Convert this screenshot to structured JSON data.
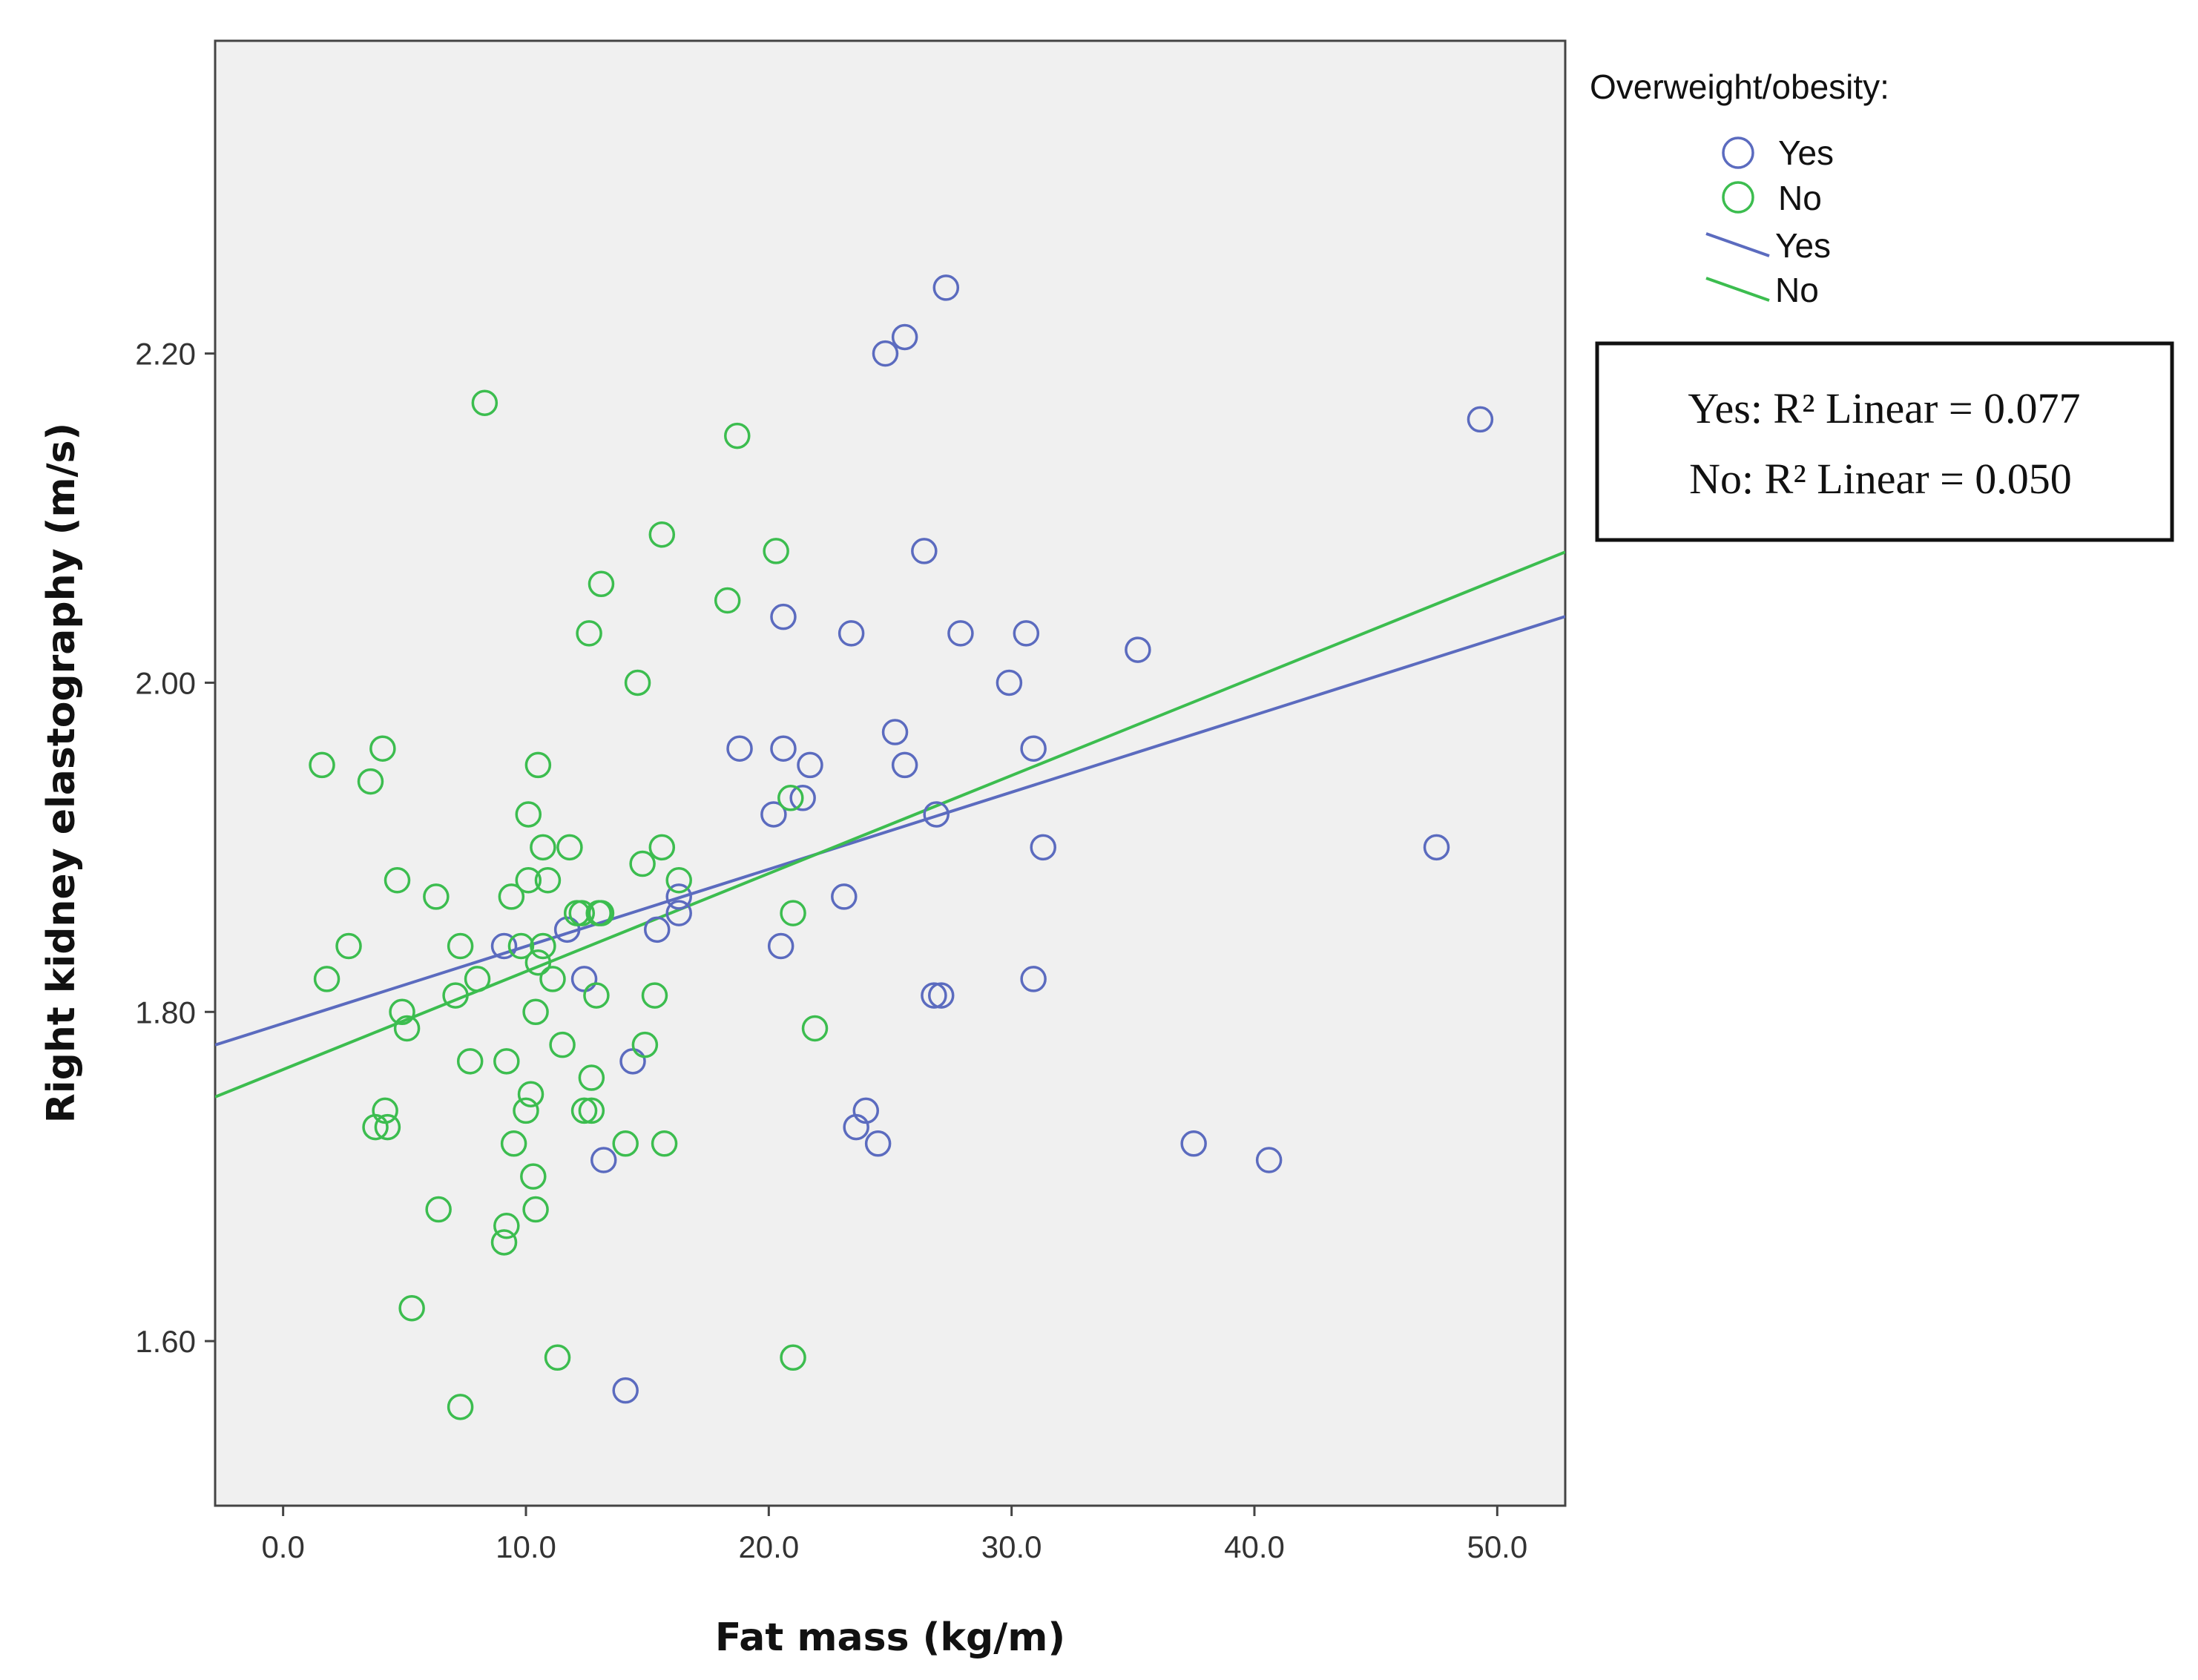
{
  "chart_data": {
    "type": "scatter",
    "xlabel": "Fat mass (kg/m)",
    "ylabel": "Right kidney elastography (m/s)",
    "xlim": [
      -2.8,
      52.8
    ],
    "ylim": [
      1.5,
      2.39
    ],
    "x_ticks": [
      0,
      10,
      20,
      30,
      40,
      50
    ],
    "x_tick_labels": [
      "0.0",
      "10.0",
      "20.0",
      "30.0",
      "40.0",
      "50.0"
    ],
    "y_ticks": [
      1.6,
      1.8,
      2.0,
      2.2
    ],
    "y_tick_labels": [
      "1.60",
      "1.80",
      "2.00",
      "2.20"
    ],
    "grid": false,
    "legend": {
      "title": "Overweight/obesity:",
      "entries": [
        {
          "kind": "marker",
          "label": "Yes",
          "series": "Yes"
        },
        {
          "kind": "marker",
          "label": "No",
          "series": "No"
        },
        {
          "kind": "line",
          "label": "Yes",
          "series": "Yes"
        },
        {
          "kind": "line",
          "label": "No",
          "series": "No"
        }
      ],
      "placement": "right"
    },
    "annotation_box": {
      "lines": [
        "Yes: R² Linear = 0.077",
        "No: R² Linear = 0.050"
      ],
      "placement": "right"
    },
    "series": [
      {
        "name": "Yes",
        "color": "#5b6bbf",
        "points": [
          [
            27.3,
            2.24
          ],
          [
            24.8,
            2.2
          ],
          [
            25.6,
            2.21
          ],
          [
            49.3,
            2.16
          ],
          [
            26.4,
            2.08
          ],
          [
            20.6,
            2.04
          ],
          [
            23.4,
            2.03
          ],
          [
            27.9,
            2.03
          ],
          [
            30.6,
            2.03
          ],
          [
            35.2,
            2.02
          ],
          [
            29.9,
            2.0
          ],
          [
            25.2,
            1.97
          ],
          [
            18.8,
            1.96
          ],
          [
            20.6,
            1.96
          ],
          [
            30.9,
            1.96
          ],
          [
            21.7,
            1.95
          ],
          [
            25.6,
            1.95
          ],
          [
            21.4,
            1.93
          ],
          [
            20.2,
            1.92
          ],
          [
            26.9,
            1.92
          ],
          [
            31.3,
            1.9
          ],
          [
            47.5,
            1.9
          ],
          [
            23.1,
            1.87
          ],
          [
            16.3,
            1.87
          ],
          [
            16.3,
            1.86
          ],
          [
            11.7,
            1.85
          ],
          [
            15.4,
            1.85
          ],
          [
            9.1,
            1.84
          ],
          [
            20.5,
            1.84
          ],
          [
            12.4,
            1.82
          ],
          [
            30.9,
            1.82
          ],
          [
            26.8,
            1.81
          ],
          [
            27.1,
            1.81
          ],
          [
            14.4,
            1.77
          ],
          [
            24.0,
            1.74
          ],
          [
            23.6,
            1.73
          ],
          [
            24.5,
            1.72
          ],
          [
            37.5,
            1.72
          ],
          [
            13.2,
            1.71
          ],
          [
            40.6,
            1.71
          ],
          [
            14.1,
            1.57
          ]
        ],
        "fit": {
          "intercept": 1.793,
          "slope": 0.004683
        }
      },
      {
        "name": "No",
        "color": "#3cbd4f",
        "points": [
          [
            8.3,
            2.17
          ],
          [
            18.7,
            2.15
          ],
          [
            15.6,
            2.09
          ],
          [
            20.3,
            2.08
          ],
          [
            13.1,
            2.06
          ],
          [
            18.3,
            2.05
          ],
          [
            12.6,
            2.03
          ],
          [
            14.6,
            2.0
          ],
          [
            1.6,
            1.95
          ],
          [
            4.1,
            1.96
          ],
          [
            3.6,
            1.94
          ],
          [
            10.5,
            1.95
          ],
          [
            10.1,
            1.92
          ],
          [
            20.9,
            1.93
          ],
          [
            10.7,
            1.9
          ],
          [
            11.8,
            1.9
          ],
          [
            15.6,
            1.9
          ],
          [
            14.8,
            1.89
          ],
          [
            4.7,
            1.88
          ],
          [
            10.1,
            1.88
          ],
          [
            10.9,
            1.88
          ],
          [
            16.3,
            1.88
          ],
          [
            6.3,
            1.87
          ],
          [
            9.4,
            1.87
          ],
          [
            12.1,
            1.86
          ],
          [
            12.3,
            1.86
          ],
          [
            13.0,
            1.86
          ],
          [
            13.1,
            1.86
          ],
          [
            21.0,
            1.86
          ],
          [
            2.7,
            1.84
          ],
          [
            7.3,
            1.84
          ],
          [
            9.8,
            1.84
          ],
          [
            10.5,
            1.83
          ],
          [
            10.7,
            1.84
          ],
          [
            1.8,
            1.82
          ],
          [
            8.0,
            1.82
          ],
          [
            11.1,
            1.82
          ],
          [
            7.1,
            1.81
          ],
          [
            12.9,
            1.81
          ],
          [
            15.3,
            1.81
          ],
          [
            4.9,
            1.8
          ],
          [
            10.4,
            1.8
          ],
          [
            5.1,
            1.79
          ],
          [
            21.9,
            1.79
          ],
          [
            11.5,
            1.78
          ],
          [
            14.9,
            1.78
          ],
          [
            7.7,
            1.77
          ],
          [
            9.2,
            1.77
          ],
          [
            10.2,
            1.75
          ],
          [
            12.7,
            1.76
          ],
          [
            4.2,
            1.74
          ],
          [
            10.0,
            1.74
          ],
          [
            12.4,
            1.74
          ],
          [
            12.7,
            1.74
          ],
          [
            3.8,
            1.73
          ],
          [
            4.3,
            1.73
          ],
          [
            9.5,
            1.72
          ],
          [
            14.1,
            1.72
          ],
          [
            15.7,
            1.72
          ],
          [
            10.3,
            1.7
          ],
          [
            6.4,
            1.68
          ],
          [
            10.4,
            1.68
          ],
          [
            9.2,
            1.67
          ],
          [
            9.1,
            1.66
          ],
          [
            5.3,
            1.62
          ],
          [
            11.3,
            1.59
          ],
          [
            21.0,
            1.59
          ],
          [
            7.3,
            1.56
          ]
        ],
        "fit": {
          "intercept": 1.765,
          "slope": 0.005955
        }
      }
    ]
  }
}
